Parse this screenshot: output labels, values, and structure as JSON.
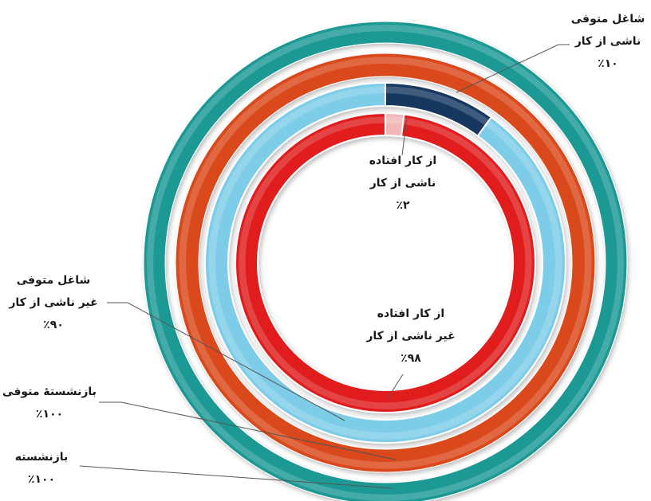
{
  "chart_data": {
    "type": "pie",
    "variant": "doughnut",
    "rings": [
      {
        "name": "بازنشسته",
        "slices": [
          {
            "label": "بازنشسته",
            "value": 100,
            "display": "٪۱۰۰",
            "color": "#1f9995"
          }
        ]
      },
      {
        "name": "بازنشستهٔ متوفی",
        "slices": [
          {
            "label": "بازنشستهٔ متوفی",
            "value": 100,
            "display": "٪۱۰۰",
            "color": "#d9491a"
          }
        ]
      },
      {
        "name": "شاغل متوفی",
        "slices": [
          {
            "label": "شاغل متوفی ناشی از کار",
            "line1": "شاغل متوفی",
            "line2": "ناشی از کار",
            "value": 10,
            "display": "٪۱۰",
            "color": "#17375e"
          },
          {
            "label": "شاغل متوفی غیر ناشی از کار",
            "line1": "شاغل متوفی",
            "line2": "غیر ناشی از کار",
            "value": 90,
            "display": "٪۹۰",
            "color": "#7ecde8"
          }
        ]
      },
      {
        "name": "از کار افتاده",
        "slices": [
          {
            "label": "از کار افتاده ناشی از کار",
            "line1": "از کار افتاده",
            "line2": "ناشی از کار",
            "value": 2,
            "display": "٪۲",
            "color": "#f2b6b6"
          },
          {
            "label": "از کار افتاده غیر ناشی از کار",
            "line1": "از کار افتاده",
            "line2": "غیر ناشی از کار",
            "value": 98,
            "display": "٪۹۸",
            "color": "#e01b1b"
          }
        ]
      }
    ],
    "labels": {
      "retired": {
        "line1": "بازنشسته",
        "pct": "٪۱۰۰"
      },
      "retired_deceased": {
        "line1": "بازنشستهٔ متوفی",
        "pct": "٪۱۰۰"
      },
      "emp_work": {
        "line1": "شاغل متوفی",
        "line2": "ناشی از کار",
        "pct": "٪۱۰"
      },
      "emp_nonwork": {
        "line1": "شاغل متوفی",
        "line2": "غیر ناشی از کار",
        "pct": "٪۹۰"
      },
      "dis_work": {
        "line1": "از کار افتاده",
        "line2": "ناشی از کار",
        "pct": "٪۲"
      },
      "dis_nonwork": {
        "line1": "از کار افتاده",
        "line2": "غیر ناشی از کار",
        "pct": "٪۹۸"
      }
    },
    "legend": "none"
  }
}
